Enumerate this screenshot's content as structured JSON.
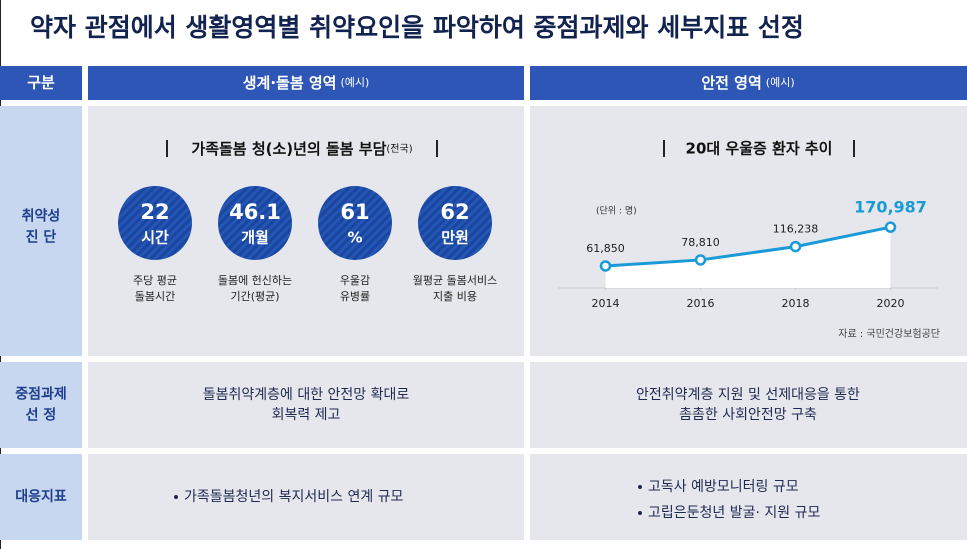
{
  "title": "약자 관점에서 생활영역별 취약요인을 파악하여 중점과제와 세부지표 선정",
  "header": {
    "category": "구분",
    "columns": [
      {
        "label": "생계·돌봄 영역",
        "note": "(예시)"
      },
      {
        "label": "안전 영역",
        "note": "(예시)"
      }
    ]
  },
  "rows": [
    {
      "label": [
        "취약성",
        "진 단"
      ]
    },
    {
      "label": [
        "중점과제",
        "선 정"
      ],
      "cells": [
        [
          "돌봄취약계층에 대한 안전망 확대로",
          "회복력 제고"
        ],
        [
          "안전취약계층 지원 및 선제대응을 통한",
          "촘촘한 사회안전망 구축"
        ]
      ]
    },
    {
      "label": [
        "대응지표"
      ],
      "bullets": [
        [
          "가족돌봄청년의 복지서비스 연계 규모"
        ],
        [
          "고독사 예방모니터링 규모",
          "고립은둔청년 발굴·  지원 규모"
        ]
      ]
    }
  ],
  "care_panel": {
    "title": "가족돌봄 청(소)년의 돌봄 부담",
    "title_note": "(전국)",
    "stats": [
      {
        "value": 22,
        "unit": "시간",
        "label": [
          "주당 평균",
          "돌봄시간"
        ]
      },
      {
        "value": 46.1,
        "unit": "개월",
        "label": [
          "돌봄에 헌신하는",
          "기간(평균)"
        ]
      },
      {
        "value": 61,
        "unit": "%",
        "label": [
          "우울감",
          "유병률"
        ]
      },
      {
        "value": 62,
        "unit": "만원",
        "label": [
          "월평균 돌봄서비스",
          "지출 비용"
        ]
      }
    ]
  },
  "chart_data": {
    "type": "line",
    "title": "20대 우울증 환자 추이",
    "unit_label": "(단위 : 명)",
    "source": "자료 : 국민건강보험공단",
    "x": [
      2014,
      2016,
      2018,
      2020
    ],
    "xlim": [
      2013,
      2021
    ],
    "xticks": [
      2014,
      2016,
      2018,
      2020
    ],
    "ylim": [
      0,
      250000
    ],
    "series": [
      {
        "name": "20대 우울증 환자",
        "color": "#1a9bd7",
        "values": [
          61850,
          78810,
          116238,
          170987
        ],
        "value_labels": [
          "61,850",
          "78,810",
          "116,238",
          "170,987"
        ]
      }
    ]
  }
}
